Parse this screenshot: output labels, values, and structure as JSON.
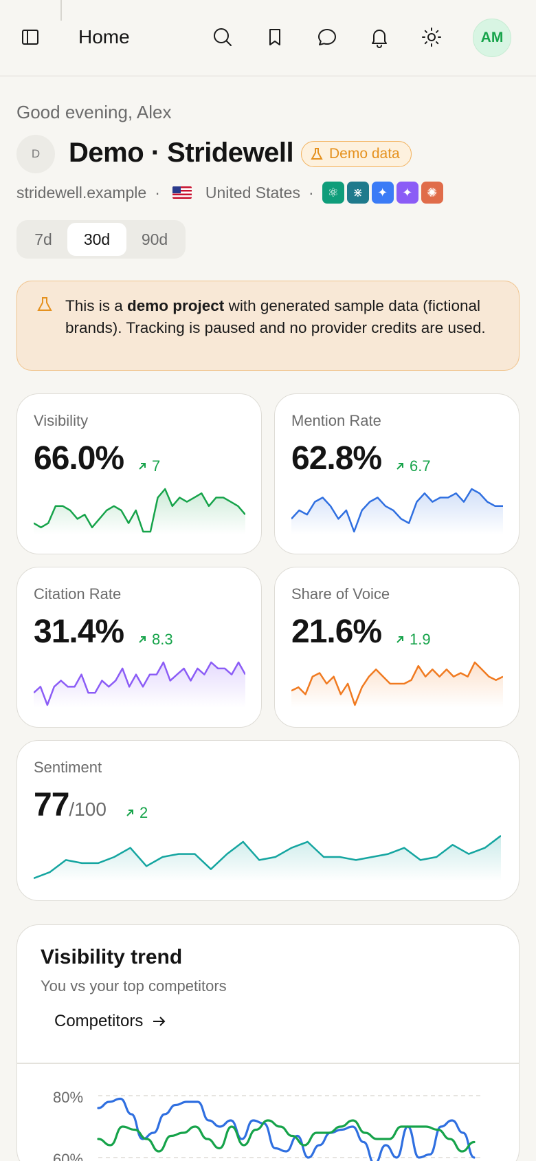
{
  "topbar": {
    "title": "Home",
    "avatar_initials": "AM",
    "icons": [
      "sidebar-toggle-icon",
      "search-icon",
      "bookmark-icon",
      "chat-icon",
      "bell-icon",
      "sun-icon"
    ]
  },
  "header": {
    "greeting": "Good evening, Alex",
    "project_initial": "D",
    "project_title": "Demo · Stridewell",
    "badge": "Demo data",
    "domain": "stridewell.example",
    "separator": "·",
    "country": "United States",
    "providers": [
      {
        "icon": "openai-icon",
        "color": "#0f9d7a",
        "glyph": "⚛"
      },
      {
        "icon": "perplexity-icon",
        "color": "#1f7a8c",
        "glyph": "⋇"
      },
      {
        "icon": "gemini-icon",
        "color": "#3b7bf6",
        "glyph": "✦"
      },
      {
        "icon": "copilot-icon",
        "color": "#8b5cf6",
        "glyph": "✦"
      },
      {
        "icon": "claude-icon",
        "color": "#e06c4a",
        "glyph": "✺"
      }
    ]
  },
  "range": {
    "options": [
      "7d",
      "30d",
      "90d"
    ],
    "selected": "30d"
  },
  "notice": {
    "prefix": "This is a ",
    "bold": "demo project",
    "suffix": " with generated sample data (fictional brands). Tracking is paused and no provider credits are used."
  },
  "metrics": {
    "visibility": {
      "label": "Visibility",
      "value": "66.0%",
      "delta": "7",
      "color": "#16a34a",
      "series": [
        62,
        61,
        62,
        66,
        66,
        65,
        63,
        64,
        61,
        63,
        65,
        66,
        65,
        62,
        65,
        60,
        60,
        68,
        70,
        66,
        68,
        67,
        68,
        69,
        66,
        68,
        68,
        67,
        66,
        64
      ]
    },
    "mention": {
      "label": "Mention Rate",
      "value": "62.8%",
      "delta": "6.7",
      "color": "#2f6fe0",
      "series": [
        58,
        60,
        59,
        62,
        63,
        61,
        58,
        60,
        55,
        60,
        62,
        63,
        61,
        60,
        58,
        57,
        62,
        64,
        62,
        63,
        63,
        64,
        62,
        65,
        64,
        62,
        61,
        61
      ]
    },
    "citation": {
      "label": "Citation Rate",
      "value": "31.4%",
      "delta": "8.3",
      "color": "#8b5cf6",
      "series": [
        27,
        28,
        25,
        28,
        29,
        28,
        28,
        30,
        27,
        27,
        29,
        28,
        29,
        31,
        28,
        30,
        28,
        30,
        30,
        32,
        29,
        30,
        31,
        29,
        31,
        30,
        32,
        31,
        31,
        30,
        32,
        30
      ]
    },
    "sov": {
      "label": "Share of Voice",
      "value": "21.6%",
      "delta": "1.9",
      "color": "#f07a20",
      "series": [
        19,
        19.5,
        18.5,
        21,
        21.5,
        20,
        21,
        18.5,
        20,
        17,
        19.5,
        21,
        22,
        21,
        20,
        20,
        20,
        20.5,
        22.5,
        21,
        22,
        21,
        22,
        21,
        21.5,
        21,
        23,
        22,
        21,
        20.5,
        21
      ]
    },
    "sentiment": {
      "label": "Sentiment",
      "value": "77",
      "max": "/100",
      "delta": "2",
      "color": "#14a5a0",
      "series": [
        72,
        73,
        75,
        74.5,
        74.5,
        75.5,
        77,
        74,
        75.5,
        76,
        76,
        73.5,
        76,
        78,
        75,
        75.5,
        77,
        78,
        75.5,
        75.5,
        75,
        75.5,
        76,
        77,
        75,
        75.5,
        77.5,
        76,
        77,
        79
      ]
    }
  },
  "trend": {
    "title": "Visibility trend",
    "subtitle": "You vs your top competitors",
    "competitors_label": "Competitors",
    "y_ticks": [
      "80%",
      "60%"
    ]
  },
  "chart_data": {
    "type": "line",
    "title": "Visibility trend",
    "ylim": [
      60,
      80
    ],
    "series": [
      {
        "color": "#2f6fe0",
        "values": [
          76,
          78,
          79,
          74,
          66,
          68,
          74,
          77,
          78,
          78,
          72,
          70,
          72,
          66,
          72,
          71,
          63,
          62,
          67,
          60,
          64,
          68,
          69,
          70,
          65,
          58,
          64,
          60,
          70,
          60,
          61,
          70,
          72,
          68,
          60
        ]
      },
      {
        "color": "#16a34a",
        "values": [
          66,
          64,
          70,
          69,
          66,
          62,
          67,
          68,
          70,
          66,
          63,
          70,
          64,
          69,
          72,
          70,
          67,
          64,
          68,
          68,
          70,
          72,
          68,
          66,
          66,
          70,
          70,
          70,
          69,
          66,
          62,
          65
        ]
      }
    ]
  }
}
